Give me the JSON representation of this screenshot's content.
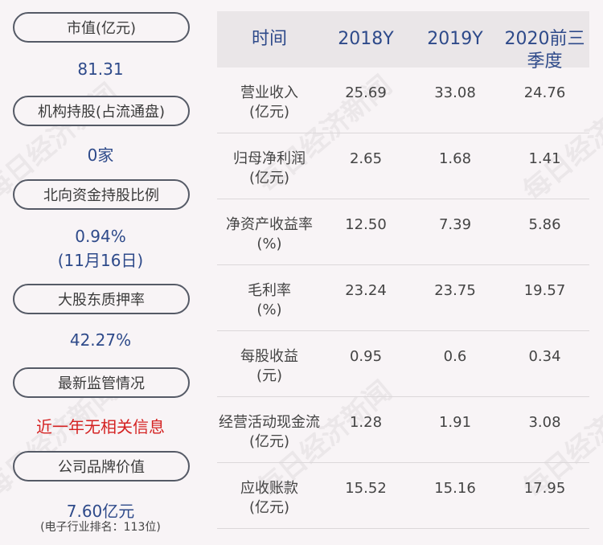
{
  "left": {
    "items": [
      {
        "label": "市值(亿元)",
        "value": "81.31"
      },
      {
        "label": "机构持股(占流通盘)",
        "value": "0家"
      },
      {
        "label": "北向资金持股比例",
        "value": "0.94%",
        "value2": "(11月16日)"
      },
      {
        "label": "大股东质押率",
        "value": "42.27%"
      },
      {
        "label": "最新监管情况",
        "value": "近一年无相关信息"
      },
      {
        "label": "公司品牌价值",
        "value": "7.60亿元",
        "note": "(电子行业排名：113位)"
      }
    ]
  },
  "table": {
    "headers": [
      "时间",
      "2018Y",
      "2019Y",
      "2020前三季度"
    ],
    "rows": [
      {
        "name": "营业收入",
        "unit": "(亿元)",
        "v": [
          "25.69",
          "33.08",
          "24.76"
        ]
      },
      {
        "name": "归母净利润",
        "unit": "(亿元)",
        "v": [
          "2.65",
          "1.68",
          "1.41"
        ]
      },
      {
        "name": "净资产收益率",
        "unit": "(%)",
        "v": [
          "12.50",
          "7.39",
          "5.86"
        ]
      },
      {
        "name": "毛利率",
        "unit": "(%)",
        "v": [
          "23.24",
          "23.75",
          "19.57"
        ]
      },
      {
        "name": "每股收益",
        "unit": "(元)",
        "v": [
          "0.95",
          "0.6",
          "0.34"
        ]
      },
      {
        "name": "经营活动现金流",
        "unit": "(亿元)",
        "v": [
          "1.28",
          "1.91",
          "3.08"
        ]
      },
      {
        "name": "应收账款",
        "unit": "(亿元)",
        "v": [
          "15.52",
          "15.16",
          "17.95"
        ]
      }
    ]
  },
  "watermark": "每日经济新闻"
}
